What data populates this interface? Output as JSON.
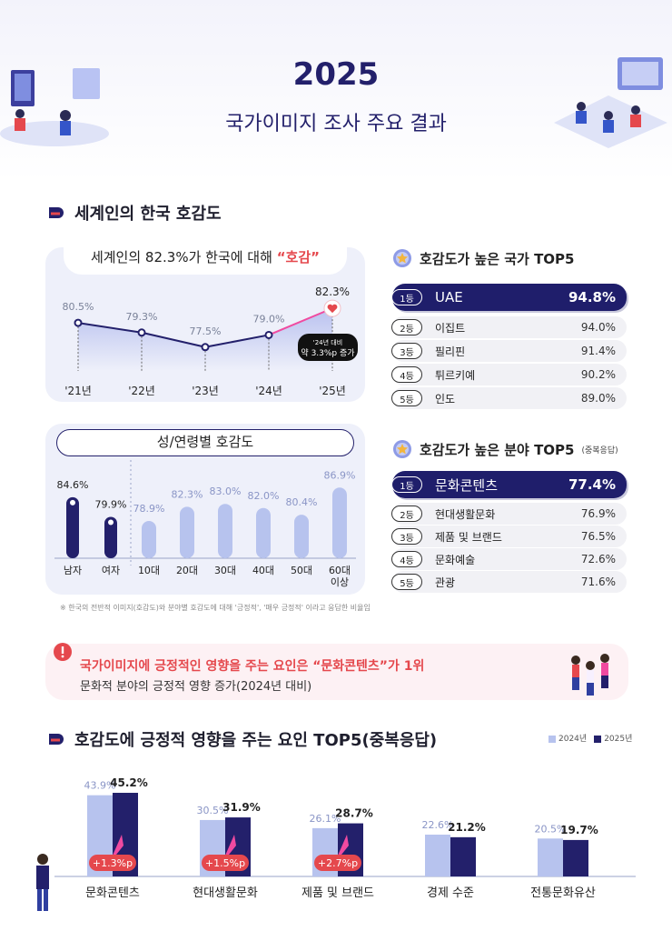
{
  "header": {
    "year": "2025",
    "subtitle": "국가이미지 조사 주요 결과"
  },
  "section1": {
    "title": "세계인의 한국 호감도",
    "trend_title_prefix": "세계인의 82.3%가 한국에 대해",
    "trend_title_highlight": "“호감”",
    "callout_line1": "'24년 대비",
    "callout_line2": "약 3.3%p 증가",
    "gender_age_title": "성/연령별 호감도",
    "footnote": "※ 한국의 전반적 이미지(호감도)와 분야별 호감도에 대해 '긍정적', '매우 긍정적' 이라고 응답한 비율임"
  },
  "country_top5": {
    "title": "호감도가 높은 국가 TOP5",
    "items": [
      {
        "rank": "1등",
        "name": "UAE",
        "value": "94.8%"
      },
      {
        "rank": "2등",
        "name": "이집트",
        "value": "94.0%"
      },
      {
        "rank": "3등",
        "name": "필리핀",
        "value": "91.4%"
      },
      {
        "rank": "4등",
        "name": "튀르키예",
        "value": "90.2%"
      },
      {
        "rank": "5등",
        "name": "인도",
        "value": "89.0%"
      }
    ]
  },
  "field_top5": {
    "title": "호감도가 높은 분야 TOP5",
    "title_note": "(중복응답)",
    "items": [
      {
        "rank": "1등",
        "name": "문화콘텐츠",
        "value": "77.4%"
      },
      {
        "rank": "2등",
        "name": "현대생활문화",
        "value": "76.9%"
      },
      {
        "rank": "3등",
        "name": "제품 및 브랜드",
        "value": "76.5%"
      },
      {
        "rank": "4등",
        "name": "문화예술",
        "value": "72.6%"
      },
      {
        "rank": "5등",
        "name": "관광",
        "value": "71.6%"
      }
    ]
  },
  "alert": {
    "line1": "국가이미지에 긍정적인 영향을 주는 요인은 “문화콘텐츠”가 1위",
    "line2": "문화적 분야의 긍정적 영향 증가(2024년 대비)"
  },
  "section2": {
    "title": "호감도에 긍정적 영향을 주는 요인 TOP5(중복응답)"
  },
  "colors": {
    "navy": "#23206b",
    "light": "#b7c3ee",
    "accent": "#e5484d",
    "pink": "#f04aa0"
  },
  "chart_data": [
    {
      "type": "line",
      "title": "세계인의 82.3%가 한국에 대해 “호감”",
      "categories": [
        "'21년",
        "'22년",
        "'23년",
        "'24년",
        "'25년"
      ],
      "values": [
        80.5,
        79.3,
        77.5,
        79.0,
        82.3
      ],
      "labels": [
        "80.5%",
        "79.3%",
        "77.5%",
        "79.0%",
        "82.3%"
      ],
      "ylim": [
        75,
        84
      ]
    },
    {
      "type": "bar",
      "title": "성/연령별 호감도",
      "categories": [
        "남자",
        "여자",
        "10대",
        "20대",
        "30대",
        "40대",
        "50대",
        "60대 이상"
      ],
      "values": [
        84.6,
        79.9,
        78.9,
        82.3,
        83.0,
        82.0,
        80.4,
        86.9
      ],
      "labels": [
        "84.6%",
        "79.9%",
        "78.9%",
        "82.3%",
        "83.0%",
        "82.0%",
        "80.4%",
        "86.9%"
      ],
      "groups": [
        "gender",
        "gender",
        "age",
        "age",
        "age",
        "age",
        "age",
        "age"
      ],
      "ylim": [
        70,
        90
      ]
    },
    {
      "type": "bar",
      "title": "호감도에 긍정적 영향을 주는 요인 TOP5(중복응답)",
      "categories": [
        "문화콘텐츠",
        "현대생활문화",
        "제품 및 브랜드",
        "경제 수준",
        "전통문화유산"
      ],
      "series": [
        {
          "name": "2024년",
          "values": [
            43.9,
            30.5,
            26.1,
            22.6,
            20.5
          ],
          "labels": [
            "43.9%",
            "30.5%",
            "26.1%",
            "22.6%",
            "20.5%"
          ]
        },
        {
          "name": "2025년",
          "values": [
            45.2,
            31.9,
            28.7,
            21.2,
            19.7
          ],
          "labels": [
            "45.2%",
            "31.9%",
            "28.7%",
            "21.2%",
            "19.7%"
          ]
        }
      ],
      "increase": [
        "+1.3%p",
        "+1.5%p",
        "+2.7%p",
        "",
        ""
      ],
      "ylim": [
        0,
        50
      ]
    }
  ]
}
